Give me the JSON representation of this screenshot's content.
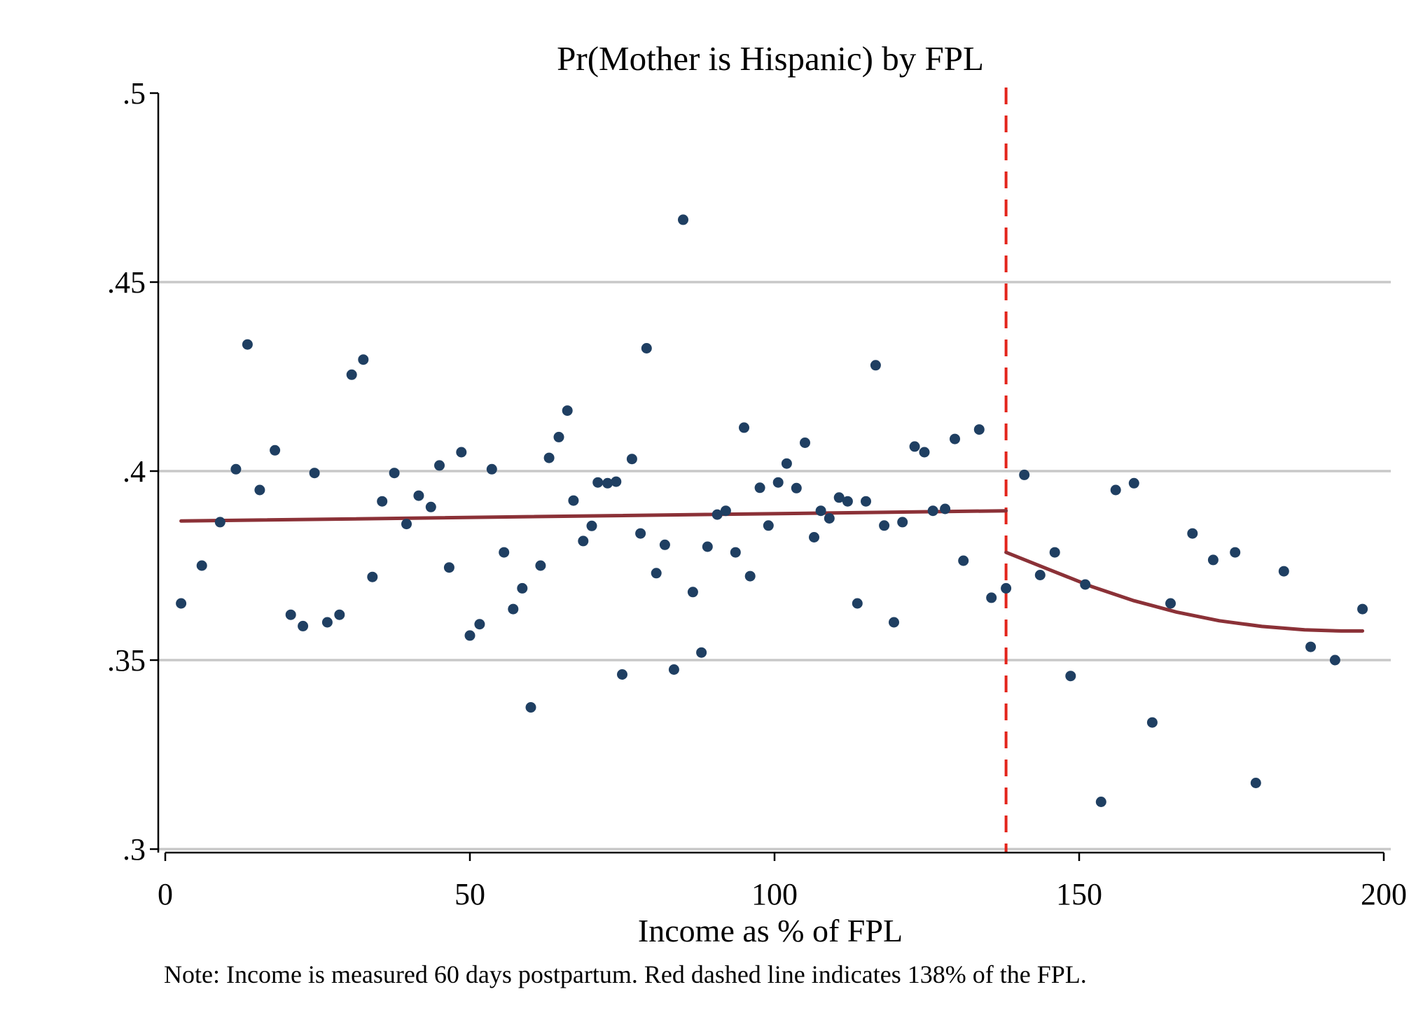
{
  "chart_data": {
    "type": "scatter",
    "title": "Pr(Mother is Hispanic) by FPL",
    "xlabel": "Income as % of FPL",
    "ylabel": "",
    "note": "Note: Income is measured 60 days postpartum. Red dashed line indicates 138% of the FPL.",
    "xlim": [
      0,
      200
    ],
    "ylim": [
      0.3,
      0.5
    ],
    "xticks": [
      {
        "value": 0,
        "label": "0"
      },
      {
        "value": 50,
        "label": "50"
      },
      {
        "value": 100,
        "label": "100"
      },
      {
        "value": 150,
        "label": "150"
      },
      {
        "value": 200,
        "label": "200"
      }
    ],
    "yticks": [
      {
        "value": 0.3,
        "label": ".3"
      },
      {
        "value": 0.35,
        "label": ".35"
      },
      {
        "value": 0.4,
        "label": ".4"
      },
      {
        "value": 0.45,
        "label": ".45"
      },
      {
        "value": 0.5,
        "label": ".5"
      }
    ],
    "grid": true,
    "legend": "none",
    "cutoff": 138,
    "colors": {
      "points": "#1f3f62",
      "fit": "#8b3137",
      "cutoff": "#e3241b",
      "grid": "#c8c8c8",
      "axis": "#000000"
    },
    "points": [
      [
        2.6,
        0.365
      ],
      [
        6,
        0.375
      ],
      [
        9,
        0.3865
      ],
      [
        11.6,
        0.4005
      ],
      [
        13.5,
        0.4335
      ],
      [
        15.5,
        0.395
      ],
      [
        18,
        0.4055
      ],
      [
        20.6,
        0.362
      ],
      [
        22.6,
        0.359
      ],
      [
        24.5,
        0.3995
      ],
      [
        26.6,
        0.36
      ],
      [
        28.6,
        0.362
      ],
      [
        30.6,
        0.4255
      ],
      [
        32.5,
        0.4295
      ],
      [
        34,
        0.372
      ],
      [
        35.6,
        0.392
      ],
      [
        37.6,
        0.3995
      ],
      [
        39.6,
        0.386
      ],
      [
        41.6,
        0.3935
      ],
      [
        43.6,
        0.3905
      ],
      [
        45,
        0.4015
      ],
      [
        46.6,
        0.3745
      ],
      [
        48.6,
        0.405
      ],
      [
        50,
        0.3565
      ],
      [
        51.6,
        0.3595
      ],
      [
        53.6,
        0.4005
      ],
      [
        55.6,
        0.3785
      ],
      [
        57.1,
        0.3635
      ],
      [
        58.6,
        0.369
      ],
      [
        60,
        0.3375
      ],
      [
        61.6,
        0.375
      ],
      [
        63,
        0.4035
      ],
      [
        64.6,
        0.409
      ],
      [
        66,
        0.416
      ],
      [
        67,
        0.3922
      ],
      [
        68.6,
        0.3815
      ],
      [
        70,
        0.3855
      ],
      [
        71,
        0.397
      ],
      [
        72.6,
        0.3968
      ],
      [
        74,
        0.3972
      ],
      [
        75,
        0.3462
      ],
      [
        76.6,
        0.4032
      ],
      [
        78,
        0.3835
      ],
      [
        79,
        0.4325
      ],
      [
        80.6,
        0.373
      ],
      [
        82,
        0.3805
      ],
      [
        83.5,
        0.3475
      ],
      [
        85,
        0.4665
      ],
      [
        86.6,
        0.368
      ],
      [
        88,
        0.352
      ],
      [
        89,
        0.38
      ],
      [
        90.6,
        0.3885
      ],
      [
        92,
        0.3895
      ],
      [
        93.6,
        0.3785
      ],
      [
        95,
        0.4115
      ],
      [
        96,
        0.3722
      ],
      [
        97.6,
        0.3956
      ],
      [
        99,
        0.3856
      ],
      [
        100.6,
        0.397
      ],
      [
        102,
        0.402
      ],
      [
        103.6,
        0.3955
      ],
      [
        105,
        0.4075
      ],
      [
        106.5,
        0.3825
      ],
      [
        107.6,
        0.3895
      ],
      [
        109,
        0.3875
      ],
      [
        110.6,
        0.393
      ],
      [
        112,
        0.392
      ],
      [
        113.6,
        0.365
      ],
      [
        115,
        0.392
      ],
      [
        116.6,
        0.428
      ],
      [
        118,
        0.3856
      ],
      [
        119.6,
        0.36
      ],
      [
        121,
        0.3865
      ],
      [
        123,
        0.4065
      ],
      [
        124.6,
        0.405
      ],
      [
        126,
        0.3895
      ],
      [
        128,
        0.39
      ],
      [
        129.6,
        0.4085
      ],
      [
        131,
        0.3763
      ],
      [
        133.6,
        0.411
      ],
      [
        135.6,
        0.3665
      ],
      [
        138,
        0.369
      ],
      [
        141,
        0.399
      ],
      [
        143.6,
        0.3725
      ],
      [
        146,
        0.3785
      ],
      [
        148.6,
        0.3458
      ],
      [
        151,
        0.37
      ],
      [
        153.6,
        0.3125
      ],
      [
        156,
        0.395
      ],
      [
        159,
        0.3968
      ],
      [
        162,
        0.3335
      ],
      [
        165,
        0.365
      ],
      [
        168.6,
        0.3835
      ],
      [
        172,
        0.3765
      ],
      [
        175.6,
        0.3785
      ],
      [
        179,
        0.3175
      ],
      [
        183.6,
        0.3735
      ],
      [
        188,
        0.3535
      ],
      [
        192,
        0.35
      ],
      [
        196.5,
        0.3635
      ]
    ],
    "fit_left": [
      [
        2.6,
        0.3868
      ],
      [
        138,
        0.3895
      ]
    ],
    "fit_right": [
      [
        138,
        0.3785
      ],
      [
        145,
        0.374
      ],
      [
        152,
        0.3695
      ],
      [
        159,
        0.3657
      ],
      [
        166,
        0.3627
      ],
      [
        173,
        0.3604
      ],
      [
        180,
        0.3589
      ],
      [
        187,
        0.358
      ],
      [
        193,
        0.3577
      ],
      [
        196.5,
        0.3577
      ]
    ]
  }
}
